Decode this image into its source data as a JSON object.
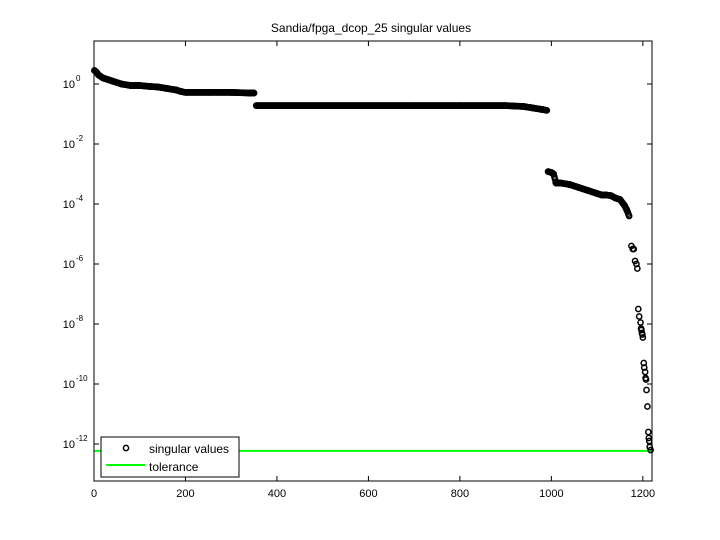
{
  "chart_data": {
    "type": "scatter",
    "title": "Sandia/fpga_dcop_25 singular values",
    "xlabel": "",
    "ylabel": "",
    "xlim": [
      0,
      1220
    ],
    "ylim_log10": [
      -13.3,
      1.45
    ],
    "yscale": "log",
    "grid": false,
    "legend_position": "lower left",
    "x_ticks": [
      0,
      200,
      400,
      600,
      800,
      1000,
      1200
    ],
    "y_ticks_exponent": [
      0,
      -2,
      -4,
      -6,
      -8,
      -10,
      -12
    ],
    "y_tick_labels": [
      "10^0",
      "10^-2",
      "10^-4",
      "10^-6",
      "10^-8",
      "10^-10",
      "10^-12"
    ],
    "series": [
      {
        "name": "singular values",
        "marker": "circle-open",
        "color": "#000000",
        "segments_log10": [
          {
            "x": [
              1,
              5,
              10,
              20,
              40,
              60,
              80,
              100,
              120,
              140,
              160,
              180,
              190,
              200,
              250,
              300,
              340,
              350
            ],
            "y": [
              0.45,
              0.4,
              0.3,
              0.2,
              0.1,
              0.0,
              -0.05,
              -0.05,
              -0.08,
              -0.1,
              -0.15,
              -0.2,
              -0.25,
              -0.28,
              -0.28,
              -0.28,
              -0.3,
              -0.3
            ]
          },
          {
            "x": [
              355,
              400,
              500,
              600,
              700,
              800,
              900,
              940,
              960,
              980,
              990
            ],
            "y": [
              -0.72,
              -0.72,
              -0.72,
              -0.72,
              -0.72,
              -0.72,
              -0.72,
              -0.75,
              -0.8,
              -0.85,
              -0.88
            ]
          },
          {
            "x": [
              993,
              1000,
              1005,
              1010,
              1020,
              1040,
              1060,
              1080,
              1100,
              1110,
              1120,
              1130,
              1140,
              1150,
              1160,
              1165,
              1170
            ],
            "y": [
              -2.92,
              -2.95,
              -3.0,
              -3.3,
              -3.3,
              -3.35,
              -3.45,
              -3.55,
              -3.65,
              -3.7,
              -3.7,
              -3.72,
              -3.8,
              -3.85,
              -4.05,
              -4.2,
              -4.4
            ]
          },
          {
            "x": [
              1175,
              1178,
              1180,
              1183,
              1186,
              1188,
              1190,
              1192,
              1195,
              1196,
              1197,
              1198,
              1199,
              1200,
              1202,
              1203,
              1205,
              1206,
              1207,
              1208,
              1210,
              1212,
              1213,
              1214,
              1215,
              1217
            ],
            "y": [
              -5.4,
              -5.5,
              -5.5,
              -5.9,
              -6.0,
              -6.15,
              -7.5,
              -7.75,
              -7.95,
              -8.15,
              -8.2,
              -8.3,
              -8.35,
              -8.45,
              -9.3,
              -9.45,
              -9.6,
              -9.8,
              -9.85,
              -10.2,
              -10.75,
              -11.6,
              -11.8,
              -11.9,
              -12.1,
              -12.2
            ]
          }
        ]
      },
      {
        "name": "tolerance",
        "type": "line",
        "color": "#00ff00",
        "y_log10": -12.23,
        "x": [
          0,
          1220
        ]
      }
    ]
  },
  "legend": {
    "items": [
      {
        "label": "singular values"
      },
      {
        "label": "tolerance"
      }
    ]
  },
  "title": "Sandia/fpga_dcop_25 singular values",
  "axis": {
    "x_labels": [
      "0",
      "200",
      "400",
      "600",
      "800",
      "1000",
      "1200"
    ],
    "y_base": "10",
    "y_exps": [
      "0",
      "-2",
      "-4",
      "-6",
      "-8",
      "-10",
      "-12"
    ]
  }
}
